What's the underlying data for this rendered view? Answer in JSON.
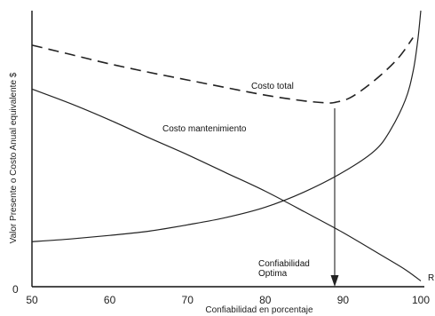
{
  "chart_data": {
    "type": "line",
    "xlabel": "Confiabilidad en porcentaje",
    "ylabel": "Valor Presente o Costo Anual equivalente $",
    "xlim": [
      50,
      100
    ],
    "ylim": [
      0,
      100
    ],
    "x_ticks": [
      "50",
      "60",
      "70",
      "80",
      "90",
      "100"
    ],
    "y_ticks": [
      "0"
    ],
    "series": [
      {
        "name": "Costo total",
        "style": "dashed",
        "x": [
          50,
          55,
          60,
          65,
          70,
          75,
          80,
          85,
          88,
          89,
          91,
          94,
          97,
          99
        ],
        "y": [
          87.5,
          84.1,
          80.7,
          77.7,
          74.9,
          72.1,
          69.4,
          67.3,
          66.6,
          66.8,
          68.6,
          74.6,
          82.5,
          90.2
        ]
      },
      {
        "name": "Costo mantenimiento",
        "style": "solid",
        "x": [
          50,
          55,
          60,
          65,
          70,
          75,
          80,
          85,
          90,
          95,
          98,
          100
        ],
        "y": [
          71.6,
          66.3,
          60.4,
          54.0,
          47.8,
          41.2,
          34.6,
          27.2,
          19.6,
          11.3,
          6.2,
          2.1
        ]
      },
      {
        "name": "",
        "style": "solid",
        "x": [
          50,
          55,
          60,
          65,
          70,
          75,
          80,
          85,
          90,
          94,
          96,
          98,
          99,
          99.6,
          100
        ],
        "y": [
          16.3,
          17.3,
          18.6,
          20.1,
          22.4,
          25.1,
          28.8,
          34.3,
          41.5,
          49.1,
          56.3,
          67.6,
          77.8,
          89.0,
          100
        ]
      }
    ],
    "annotations": {
      "total_label": "Costo total",
      "maintenance_label": "Costo mantenimiento",
      "optimum_line1": "Confiabilidad",
      "optimum_line2": "Optima",
      "optimum_x": 89,
      "edge_label": "R"
    },
    "grid": false,
    "legend": "none"
  }
}
